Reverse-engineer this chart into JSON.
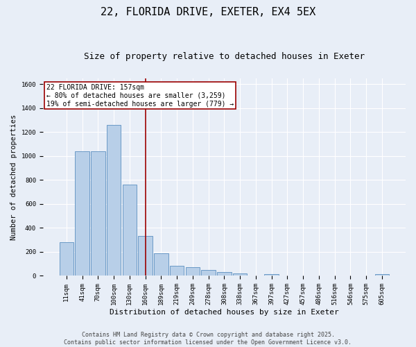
{
  "title": "22, FLORIDA DRIVE, EXETER, EX4 5EX",
  "subtitle": "Size of property relative to detached houses in Exeter",
  "xlabel": "Distribution of detached houses by size in Exeter",
  "ylabel": "Number of detached properties",
  "categories": [
    "11sqm",
    "41sqm",
    "70sqm",
    "100sqm",
    "130sqm",
    "160sqm",
    "189sqm",
    "219sqm",
    "249sqm",
    "278sqm",
    "308sqm",
    "338sqm",
    "367sqm",
    "397sqm",
    "427sqm",
    "457sqm",
    "486sqm",
    "516sqm",
    "546sqm",
    "575sqm",
    "605sqm"
  ],
  "values": [
    280,
    1040,
    1040,
    1260,
    760,
    335,
    190,
    85,
    75,
    50,
    30,
    20,
    0,
    15,
    0,
    0,
    0,
    0,
    0,
    0,
    15
  ],
  "bar_color": "#b8cfe8",
  "bar_edge_color": "#5a8fc0",
  "vline_x": 5.0,
  "vline_color": "#9b0000",
  "annotation_text": "22 FLORIDA DRIVE: 157sqm\n← 80% of detached houses are smaller (3,259)\n19% of semi-detached houses are larger (779) →",
  "annotation_box_color": "#ffffff",
  "annotation_edge_color": "#9b0000",
  "ylim": [
    0,
    1650
  ],
  "yticks": [
    0,
    200,
    400,
    600,
    800,
    1000,
    1200,
    1400,
    1600
  ],
  "background_color": "#e8eef7",
  "grid_color": "#ffffff",
  "footer_line1": "Contains HM Land Registry data © Crown copyright and database right 2025.",
  "footer_line2": "Contains public sector information licensed under the Open Government Licence v3.0.",
  "title_fontsize": 11,
  "subtitle_fontsize": 9,
  "annotation_fontsize": 7,
  "tick_fontsize": 6.5,
  "ylabel_fontsize": 7.5,
  "xlabel_fontsize": 8,
  "footer_fontsize": 6
}
